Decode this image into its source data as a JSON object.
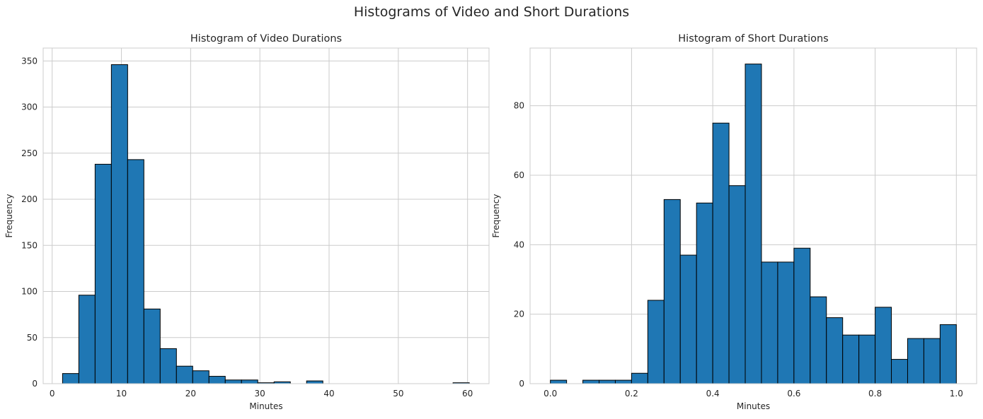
{
  "suptitle": "Histograms of Video and Short Durations",
  "colors": {
    "bar": "#1f77b4",
    "edge": "#000000",
    "grid": "#cccccc"
  },
  "chart_data": [
    {
      "type": "bar",
      "title": "Histogram of Video Durations",
      "xlabel": "Minutes",
      "ylabel": "Frequency",
      "xlim": [
        -1.3,
        63.1
      ],
      "ylim": [
        0,
        364
      ],
      "xticks": [
        0,
        10,
        20,
        30,
        40,
        50,
        60
      ],
      "yticks": [
        0,
        50,
        100,
        150,
        200,
        250,
        300,
        350
      ],
      "grid": true,
      "bin_edges": [
        1.5,
        3.85,
        6.2,
        8.55,
        10.9,
        13.25,
        15.6,
        17.95,
        20.3,
        22.65,
        25.0,
        27.35,
        29.7,
        32.05,
        34.4,
        36.75,
        39.1,
        41.45,
        43.8,
        46.15,
        48.5,
        50.85,
        53.2,
        55.55,
        57.9,
        60.25
      ],
      "values": [
        11,
        96,
        238,
        346,
        243,
        81,
        38,
        19,
        14,
        8,
        4,
        4,
        1,
        2,
        0,
        3,
        0,
        0,
        0,
        0,
        0,
        0,
        0,
        0,
        1
      ]
    },
    {
      "type": "bar",
      "title": "Histogram of Short Durations",
      "xlabel": "Minutes",
      "ylabel": "Frequency",
      "xlim": [
        -0.05,
        1.05
      ],
      "ylim": [
        0,
        96.6
      ],
      "xticks": [
        0.0,
        0.2,
        0.4,
        0.6,
        0.8,
        1.0
      ],
      "xtick_labels": [
        "0.0",
        "0.2",
        "0.4",
        "0.6",
        "0.8",
        "1.0"
      ],
      "yticks": [
        0,
        20,
        40,
        60,
        80
      ],
      "grid": true,
      "bin_edges": [
        0.0,
        0.04,
        0.08,
        0.12,
        0.16,
        0.2,
        0.24,
        0.28,
        0.32,
        0.36,
        0.4,
        0.44,
        0.48,
        0.52,
        0.56,
        0.6,
        0.64,
        0.68,
        0.72,
        0.76,
        0.8,
        0.84,
        0.88,
        0.92,
        0.96,
        1.0
      ],
      "values": [
        1,
        0,
        1,
        1,
        1,
        3,
        24,
        53,
        37,
        52,
        75,
        57,
        92,
        35,
        35,
        39,
        25,
        19,
        14,
        14,
        22,
        7,
        13,
        13,
        17
      ]
    }
  ]
}
